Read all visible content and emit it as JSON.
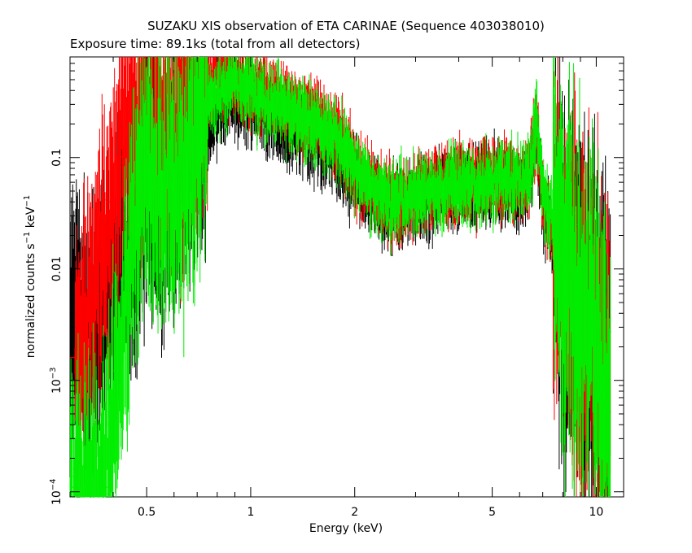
{
  "chart_data": {
    "type": "scatter",
    "title": "SUZAKU XIS observation of ETA CARINAE (Sequence 403038010)",
    "subtitle": "Exposure time: 89.1ks (total from all detectors)",
    "xlabel": "Energy (keV)",
    "ylabel": {
      "main": "normalized counts s",
      "sup1": "−1",
      "mid": " keV",
      "sup2": "−1"
    },
    "x_scale": "log",
    "y_scale": "log",
    "xlim": [
      0.3,
      12.0
    ],
    "ylim": [
      9e-05,
      0.8
    ],
    "x_ticks": [
      {
        "value": 0.5,
        "label": "0.5"
      },
      {
        "value": 1,
        "label": "1"
      },
      {
        "value": 2,
        "label": "2"
      },
      {
        "value": 5,
        "label": "5"
      },
      {
        "value": 10,
        "label": "10"
      }
    ],
    "y_ticks": [
      {
        "value": 0.1,
        "label": "0.1"
      },
      {
        "value": 0.01,
        "label": "0.01"
      },
      {
        "value": 0.001,
        "label_base": "10",
        "label_exp": "−3"
      },
      {
        "value": 0.0001,
        "label_base": "10",
        "label_exp": "−4"
      }
    ],
    "grid": false,
    "legend": "none",
    "series": [
      {
        "color": "#000000",
        "energy_keV": [
          0.3,
          0.35,
          0.4,
          0.42,
          0.45,
          0.48,
          0.5,
          0.55,
          0.6,
          0.65,
          0.7,
          0.75,
          0.8,
          0.9,
          1.0,
          1.2,
          1.5,
          1.8,
          2.0,
          2.3,
          2.6,
          3.0,
          3.5,
          4.0,
          4.5,
          5.0,
          5.5,
          6.0,
          6.4,
          6.7,
          7.0,
          8.0,
          9.0,
          10.0,
          11.0
        ],
        "counts": [
          0.004,
          0.004,
          0.007,
          0.012,
          0.02,
          0.04,
          0.06,
          0.05,
          0.06,
          0.1,
          0.15,
          0.2,
          0.3,
          0.35,
          0.3,
          0.2,
          0.15,
          0.1,
          0.07,
          0.045,
          0.035,
          0.04,
          0.05,
          0.055,
          0.06,
          0.06,
          0.055,
          0.05,
          0.055,
          0.15,
          0.04,
          0.012,
          0.006,
          0.003,
          0.0015
        ]
      },
      {
        "color": "#ff0000",
        "energy_keV": [
          0.31,
          0.33,
          0.35,
          0.37,
          0.4,
          0.42,
          0.45,
          0.48,
          0.5,
          0.55,
          0.6,
          0.65,
          0.7,
          0.75,
          0.8,
          0.85,
          0.9,
          1.0,
          1.2,
          1.5,
          1.8,
          2.0,
          2.3,
          2.6,
          3.0,
          3.5,
          4.0,
          4.5,
          5.0,
          5.5,
          6.0,
          6.4,
          6.7,
          7.0,
          7.5,
          8.0,
          9.0,
          10.0,
          11.0
        ],
        "counts": [
          0.0016,
          0.0035,
          0.006,
          0.021,
          0.04,
          0.09,
          0.2,
          0.35,
          0.3,
          0.25,
          0.3,
          0.38,
          0.45,
          0.55,
          0.6,
          0.55,
          0.5,
          0.45,
          0.35,
          0.25,
          0.15,
          0.08,
          0.055,
          0.04,
          0.045,
          0.055,
          0.06,
          0.065,
          0.07,
          0.065,
          0.06,
          0.065,
          0.18,
          0.05,
          0.02,
          0.012,
          0.005,
          0.0025,
          0.0012
        ]
      },
      {
        "color": "#00ee00",
        "energy_keV": [
          0.3,
          0.38,
          0.45,
          0.48,
          0.5,
          0.55,
          0.6,
          0.7,
          0.75,
          0.8,
          0.9,
          1.0,
          1.2,
          1.5,
          1.8,
          2.0,
          2.3,
          2.6,
          3.0,
          3.5,
          4.0,
          4.5,
          5.0,
          5.5,
          6.0,
          6.4,
          6.7,
          7.0,
          7.5,
          8.0,
          9.0,
          10.0,
          11.0
        ],
        "counts": [
          0.00011,
          0.00011,
          0.015,
          0.06,
          0.07,
          0.05,
          0.06,
          0.2,
          0.3,
          0.4,
          0.45,
          0.4,
          0.3,
          0.2,
          0.15,
          0.08,
          0.05,
          0.04,
          0.045,
          0.055,
          0.06,
          0.06,
          0.065,
          0.06,
          0.06,
          0.07,
          0.22,
          0.05,
          0.025,
          0.012,
          0.006,
          0.003,
          0.0003
        ]
      }
    ]
  }
}
